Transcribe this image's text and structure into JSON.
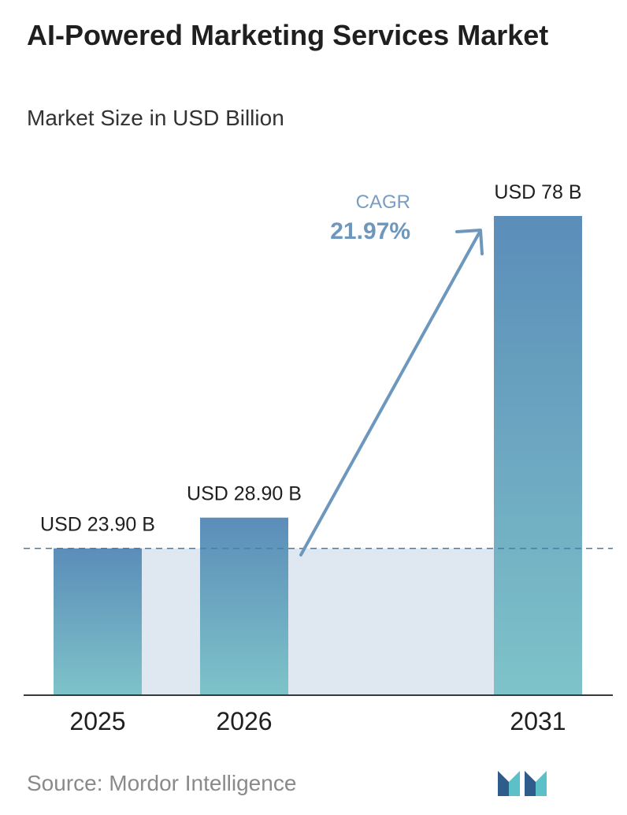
{
  "title": "AI-Powered Marketing Services Market",
  "subtitle": "Market Size in USD Billion",
  "source": "Source: Mordor Intelligence",
  "cagr": {
    "label": "CAGR",
    "value": "21.97%"
  },
  "colors": {
    "bar_top": "#5b8db9",
    "bar_bottom": "#7ec3c9",
    "band": "#dfe8f0",
    "arrow": "#6d97bd",
    "cagr_label": "#7a9cc0",
    "logo_dark": "#2f5c8a",
    "logo_light": "#5cc0c8"
  },
  "chart_data": {
    "type": "bar",
    "categories": [
      "2025",
      "2026",
      "2031"
    ],
    "values": [
      23.9,
      28.9,
      78
    ],
    "data_labels": [
      "USD 23.90 B",
      "USD 28.90 B",
      "USD 78 B"
    ],
    "ylim": [
      0,
      78
    ],
    "grid": false
  }
}
